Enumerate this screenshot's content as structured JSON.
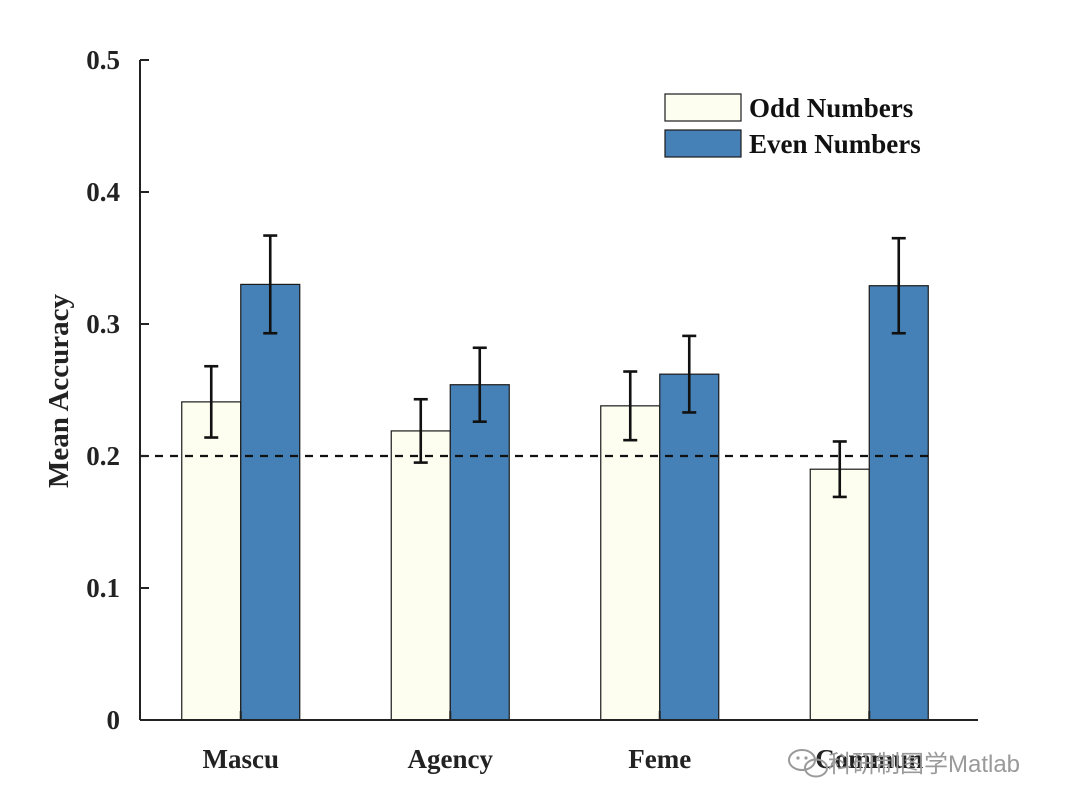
{
  "chart_data": {
    "type": "bar",
    "title": "",
    "xlabel": "",
    "ylabel": "Mean Accuracy",
    "ylim": [
      0,
      0.5
    ],
    "yticks": [
      0,
      0.1,
      0.2,
      0.3,
      0.4,
      0.5
    ],
    "ytick_labels": [
      "0",
      "0.1",
      "0.2",
      "0.3",
      "0.4",
      "0.5"
    ],
    "categories": [
      "Mascu",
      "Agency",
      "Feme",
      "Commun"
    ],
    "series": [
      {
        "name": "Odd Numbers",
        "color": "#fdfdf0",
        "values": [
          0.241,
          0.219,
          0.238,
          0.19
        ],
        "errors": [
          0.027,
          0.024,
          0.026,
          0.021
        ]
      },
      {
        "name": "Even Numbers",
        "color": "#4580b6",
        "values": [
          0.33,
          0.254,
          0.262,
          0.329
        ],
        "errors": [
          0.037,
          0.028,
          0.029,
          0.036
        ]
      }
    ],
    "reference_line": {
      "y": 0.2,
      "style": "dashed"
    },
    "grid": false,
    "legend_position": "top-right"
  },
  "watermark": {
    "text": "科研制图学Matlab"
  }
}
